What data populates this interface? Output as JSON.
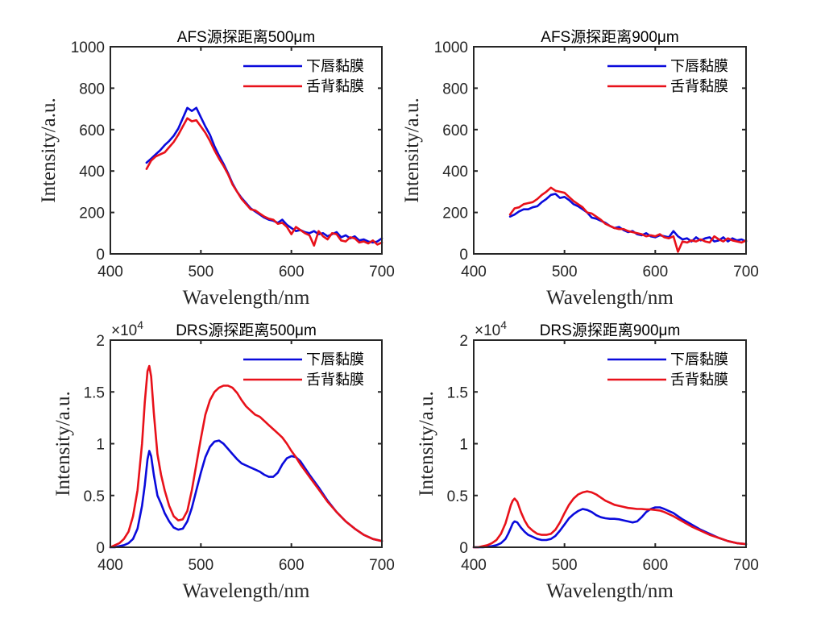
{
  "figure": {
    "axes_color": "#262626"
  },
  "chart_data": [
    {
      "type": "line",
      "title": "AFS源探距离500μm",
      "y_multiplier": "",
      "y_exponent": "",
      "xlabel": "Wavelength/nm",
      "ylabel": "Intensity/a.u.",
      "xlim": [
        400,
        700
      ],
      "ylim": [
        0,
        1000
      ],
      "xticks": [
        400,
        500,
        600,
        700
      ],
      "xtick_labels": [
        "400",
        "500",
        "600",
        "700"
      ],
      "yticks": [
        0,
        200,
        400,
        600,
        800,
        1000
      ],
      "ytick_labels": [
        "0",
        "200",
        "400",
        "600",
        "800",
        "1000"
      ],
      "grid": false,
      "legend_position": "top-right",
      "x": [
        440,
        445,
        450,
        455,
        460,
        465,
        470,
        475,
        480,
        485,
        490,
        495,
        500,
        505,
        510,
        515,
        520,
        525,
        530,
        535,
        540,
        545,
        550,
        555,
        560,
        565,
        570,
        575,
        580,
        585,
        590,
        595,
        600,
        605,
        610,
        615,
        620,
        625,
        630,
        635,
        640,
        645,
        650,
        655,
        660,
        665,
        670,
        675,
        680,
        685,
        690,
        695,
        700
      ],
      "series": [
        {
          "name": "下唇黏膜",
          "color": "#0a0adc",
          "y": [
            440,
            460,
            480,
            500,
            525,
            545,
            570,
            605,
            655,
            705,
            690,
            705,
            660,
            615,
            575,
            520,
            475,
            435,
            390,
            340,
            300,
            270,
            245,
            220,
            205,
            190,
            175,
            165,
            160,
            150,
            165,
            140,
            125,
            110,
            115,
            105,
            100,
            110,
            95,
            100,
            85,
            95,
            105,
            80,
            90,
            75,
            85,
            65,
            70,
            60,
            55,
            60,
            75
          ]
        },
        {
          "name": "舌背黏膜",
          "color": "#e8111a",
          "y": [
            410,
            450,
            470,
            480,
            490,
            515,
            540,
            575,
            615,
            655,
            640,
            645,
            615,
            585,
            545,
            500,
            460,
            425,
            385,
            335,
            300,
            265,
            240,
            215,
            210,
            195,
            180,
            170,
            165,
            145,
            150,
            130,
            95,
            130,
            115,
            100,
            90,
            40,
            110,
            85,
            70,
            100,
            95,
            65,
            60,
            80,
            75,
            55,
            60,
            50,
            65,
            45,
            55
          ]
        }
      ]
    },
    {
      "type": "line",
      "title": "AFS源探距离900μm",
      "y_multiplier": "",
      "y_exponent": "",
      "xlabel": "Wavelength/nm",
      "ylabel": "Intensity/a.u.",
      "xlim": [
        400,
        700
      ],
      "ylim": [
        0,
        1000
      ],
      "xticks": [
        400,
        500,
        600,
        700
      ],
      "xtick_labels": [
        "400",
        "500",
        "600",
        "700"
      ],
      "yticks": [
        0,
        200,
        400,
        600,
        800,
        1000
      ],
      "ytick_labels": [
        "0",
        "200",
        "400",
        "600",
        "800",
        "1000"
      ],
      "grid": false,
      "legend_position": "top-right",
      "x": [
        440,
        445,
        450,
        455,
        460,
        465,
        470,
        475,
        480,
        485,
        490,
        495,
        500,
        505,
        510,
        515,
        520,
        525,
        530,
        535,
        540,
        545,
        550,
        555,
        560,
        565,
        570,
        575,
        580,
        585,
        590,
        595,
        600,
        605,
        610,
        615,
        620,
        625,
        630,
        635,
        640,
        645,
        650,
        655,
        660,
        665,
        670,
        675,
        680,
        685,
        690,
        695,
        700
      ],
      "series": [
        {
          "name": "下唇黏膜",
          "color": "#0a0adc",
          "y": [
            180,
            190,
            205,
            215,
            215,
            225,
            230,
            250,
            265,
            285,
            290,
            270,
            275,
            260,
            240,
            230,
            215,
            200,
            175,
            170,
            160,
            150,
            135,
            125,
            130,
            115,
            105,
            110,
            95,
            90,
            100,
            85,
            80,
            90,
            85,
            80,
            110,
            85,
            70,
            75,
            60,
            80,
            65,
            75,
            80,
            60,
            65,
            80,
            60,
            75,
            65,
            70,
            60
          ]
        },
        {
          "name": "舌背黏膜",
          "color": "#e8111a",
          "y": [
            190,
            220,
            225,
            240,
            245,
            250,
            265,
            285,
            300,
            320,
            305,
            300,
            295,
            275,
            255,
            240,
            225,
            200,
            195,
            180,
            165,
            145,
            135,
            125,
            120,
            120,
            110,
            105,
            100,
            95,
            85,
            90,
            85,
            95,
            80,
            75,
            85,
            10,
            60,
            55,
            65,
            60,
            70,
            60,
            55,
            85,
            70,
            60,
            75,
            65,
            60,
            55,
            65
          ]
        }
      ]
    },
    {
      "type": "line",
      "title": "DRS源探距离500μm",
      "y_multiplier": "×10",
      "y_exponent": "4",
      "xlabel": "Wavelength/nm",
      "ylabel": "Intensity/a.u.",
      "xlim": [
        400,
        700
      ],
      "ylim": [
        0,
        2
      ],
      "xticks": [
        400,
        500,
        600,
        700
      ],
      "xtick_labels": [
        "400",
        "500",
        "600",
        "700"
      ],
      "yticks": [
        0,
        0.5,
        1,
        1.5,
        2
      ],
      "ytick_labels": [
        "0",
        "0.5",
        "1",
        "1.5",
        "2"
      ],
      "grid": false,
      "legend_position": "top-right",
      "x": [
        400,
        405,
        410,
        415,
        420,
        425,
        430,
        435,
        438,
        441,
        443,
        445,
        448,
        452,
        456,
        460,
        465,
        470,
        475,
        480,
        485,
        490,
        495,
        500,
        505,
        510,
        515,
        520,
        525,
        530,
        535,
        540,
        545,
        550,
        555,
        560,
        565,
        570,
        575,
        580,
        585,
        590,
        595,
        600,
        605,
        610,
        620,
        630,
        640,
        650,
        660,
        670,
        680,
        690,
        700
      ],
      "series": [
        {
          "name": "下唇黏膜",
          "color": "#0a0adc",
          "y": [
            0.0,
            0.0,
            0.01,
            0.02,
            0.04,
            0.08,
            0.18,
            0.4,
            0.6,
            0.85,
            0.93,
            0.88,
            0.7,
            0.5,
            0.42,
            0.33,
            0.25,
            0.19,
            0.17,
            0.18,
            0.25,
            0.38,
            0.55,
            0.72,
            0.87,
            0.97,
            1.02,
            1.03,
            1.0,
            0.95,
            0.9,
            0.85,
            0.81,
            0.79,
            0.77,
            0.75,
            0.73,
            0.7,
            0.68,
            0.68,
            0.72,
            0.8,
            0.86,
            0.88,
            0.87,
            0.83,
            0.7,
            0.58,
            0.45,
            0.34,
            0.25,
            0.18,
            0.12,
            0.08,
            0.06
          ]
        },
        {
          "name": "舌背黏膜",
          "color": "#e8111a",
          "y": [
            0.0,
            0.02,
            0.04,
            0.08,
            0.15,
            0.3,
            0.55,
            1.0,
            1.4,
            1.7,
            1.75,
            1.65,
            1.3,
            0.9,
            0.7,
            0.55,
            0.4,
            0.3,
            0.26,
            0.27,
            0.35,
            0.55,
            0.8,
            1.05,
            1.28,
            1.42,
            1.5,
            1.54,
            1.56,
            1.56,
            1.54,
            1.49,
            1.42,
            1.36,
            1.32,
            1.28,
            1.26,
            1.22,
            1.18,
            1.14,
            1.1,
            1.06,
            1.0,
            0.93,
            0.87,
            0.8,
            0.68,
            0.56,
            0.44,
            0.34,
            0.25,
            0.18,
            0.12,
            0.08,
            0.06
          ]
        }
      ]
    },
    {
      "type": "line",
      "title": "DRS源探距离900μm",
      "y_multiplier": "×10",
      "y_exponent": "4",
      "xlabel": "Wavelength/nm",
      "ylabel": "Intensity/a.u.",
      "xlim": [
        400,
        700
      ],
      "ylim": [
        0,
        2
      ],
      "xticks": [
        400,
        500,
        600,
        700
      ],
      "xtick_labels": [
        "400",
        "500",
        "600",
        "700"
      ],
      "yticks": [
        0,
        0.5,
        1,
        1.5,
        2
      ],
      "ytick_labels": [
        "0",
        "0.5",
        "1",
        "1.5",
        "2"
      ],
      "grid": false,
      "legend_position": "top-right",
      "x": [
        400,
        405,
        410,
        415,
        420,
        425,
        430,
        435,
        438,
        441,
        443,
        445,
        448,
        452,
        456,
        460,
        465,
        470,
        475,
        480,
        485,
        490,
        495,
        500,
        505,
        510,
        515,
        520,
        525,
        530,
        535,
        540,
        545,
        550,
        555,
        560,
        565,
        570,
        575,
        580,
        585,
        590,
        595,
        600,
        605,
        610,
        620,
        630,
        640,
        650,
        660,
        670,
        680,
        690,
        700
      ],
      "series": [
        {
          "name": "下唇黏膜",
          "color": "#0a0adc",
          "y": [
            0.0,
            0.0,
            0.0,
            0.005,
            0.01,
            0.02,
            0.04,
            0.08,
            0.13,
            0.19,
            0.23,
            0.25,
            0.24,
            0.19,
            0.15,
            0.12,
            0.1,
            0.08,
            0.07,
            0.07,
            0.08,
            0.11,
            0.16,
            0.22,
            0.28,
            0.32,
            0.35,
            0.37,
            0.36,
            0.34,
            0.31,
            0.29,
            0.28,
            0.275,
            0.275,
            0.27,
            0.26,
            0.25,
            0.24,
            0.25,
            0.29,
            0.34,
            0.37,
            0.385,
            0.385,
            0.37,
            0.33,
            0.27,
            0.22,
            0.17,
            0.13,
            0.09,
            0.06,
            0.04,
            0.03
          ]
        },
        {
          "name": "舌背黏膜",
          "color": "#e8111a",
          "y": [
            0.0,
            0.0,
            0.01,
            0.02,
            0.04,
            0.07,
            0.13,
            0.23,
            0.32,
            0.41,
            0.45,
            0.47,
            0.44,
            0.34,
            0.26,
            0.2,
            0.16,
            0.13,
            0.12,
            0.12,
            0.13,
            0.17,
            0.24,
            0.33,
            0.41,
            0.47,
            0.51,
            0.53,
            0.54,
            0.53,
            0.51,
            0.48,
            0.45,
            0.43,
            0.41,
            0.4,
            0.39,
            0.38,
            0.375,
            0.37,
            0.37,
            0.365,
            0.365,
            0.36,
            0.355,
            0.34,
            0.3,
            0.25,
            0.2,
            0.16,
            0.12,
            0.09,
            0.06,
            0.04,
            0.03
          ]
        }
      ]
    }
  ]
}
